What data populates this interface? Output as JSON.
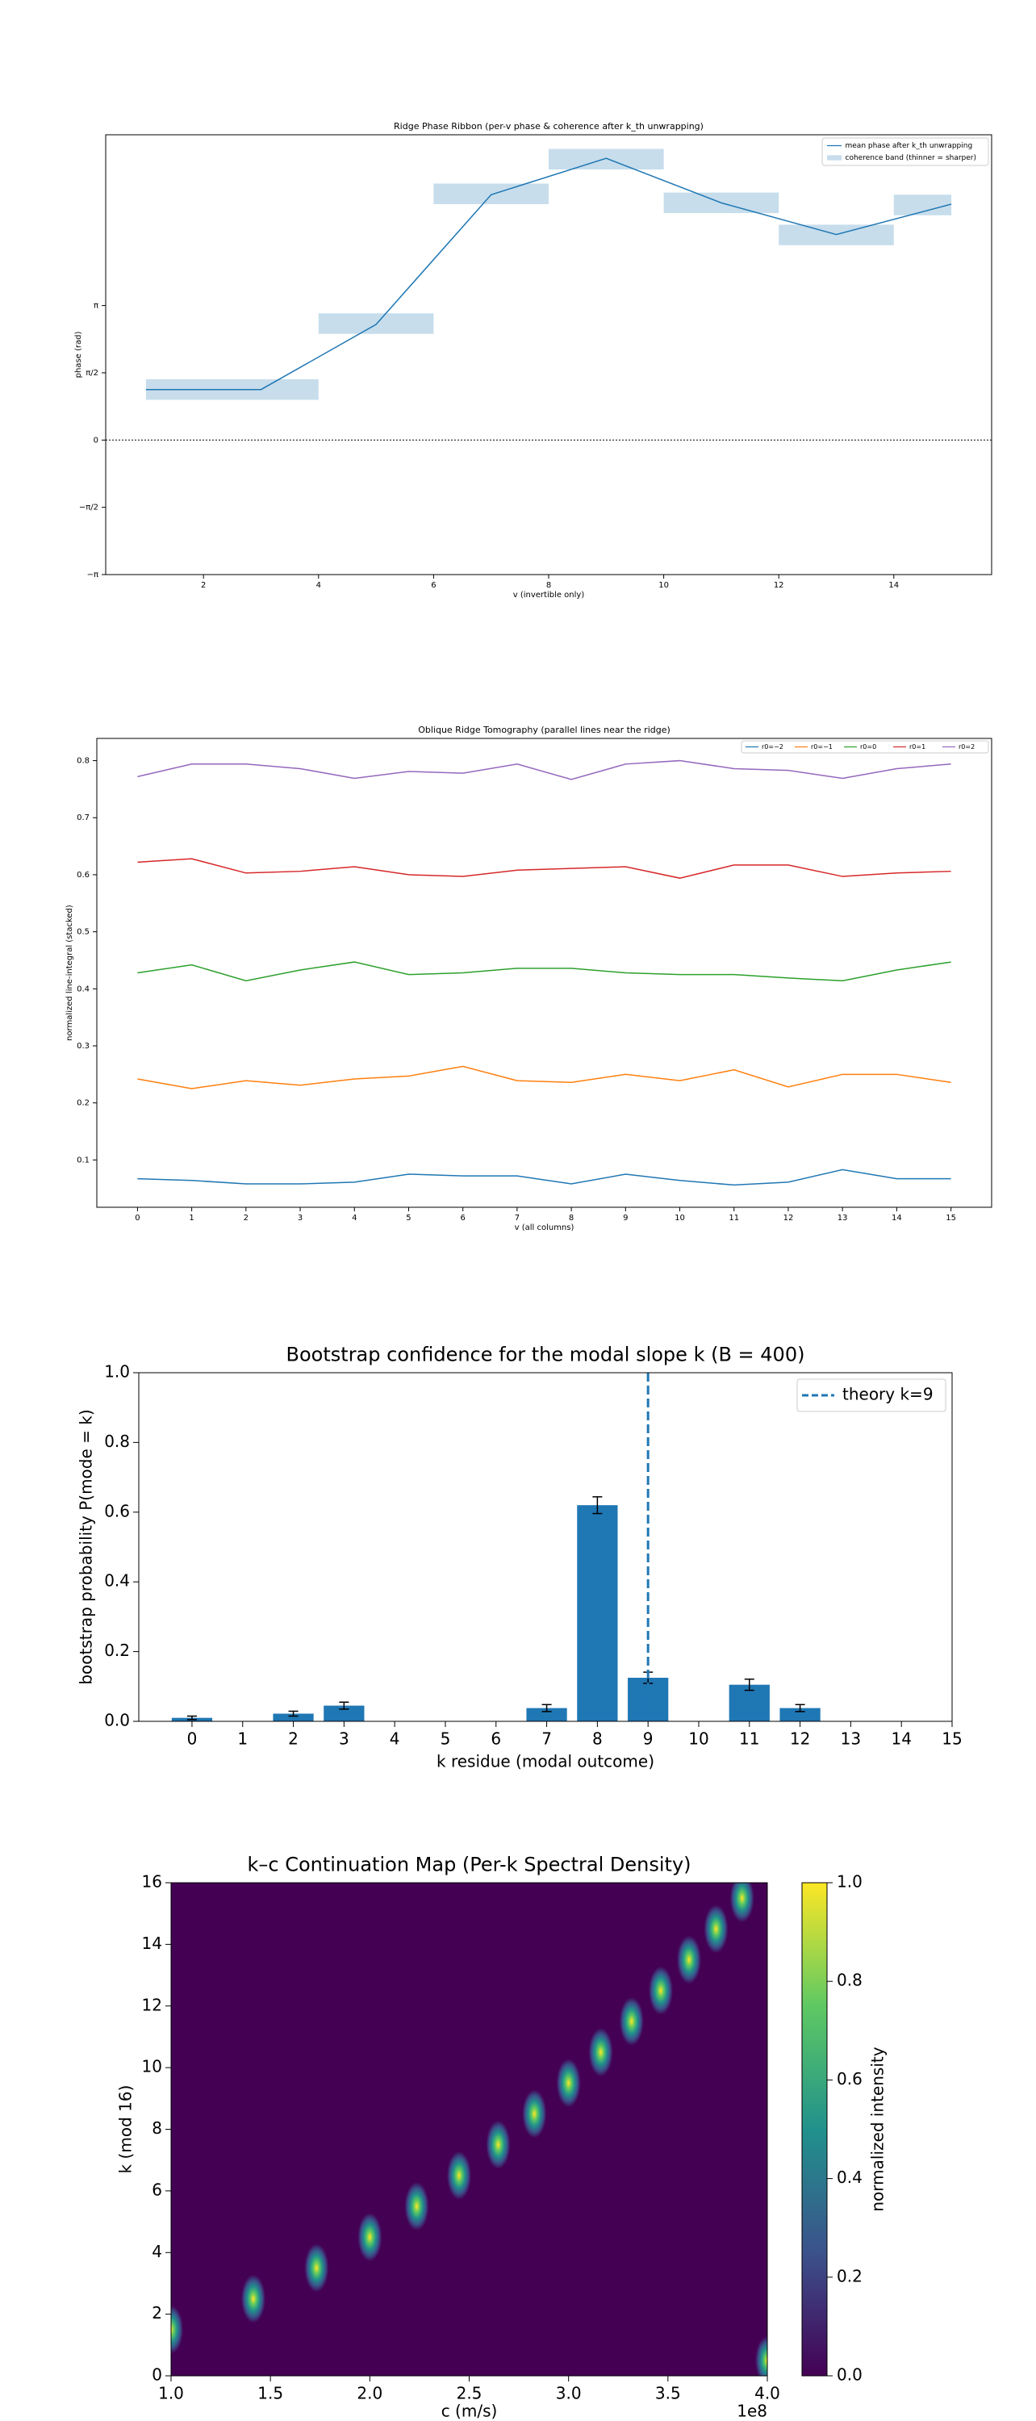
{
  "chart_data": [
    {
      "type": "line",
      "title": "Ridge Phase Ribbon (per-v phase & coherence after k_th unwrapping)",
      "xlabel": "v (invertible only)",
      "ylabel": "phase (rad)",
      "xlim": [
        0.3,
        15.7
      ],
      "ylim": [
        -3.1416,
        7.13
      ],
      "xticks": [
        2,
        4,
        6,
        8,
        10,
        12,
        14
      ],
      "yticks": [
        {
          "value": -3.1416,
          "label": "−π"
        },
        {
          "value": -1.5708,
          "label": "−π/2"
        },
        0,
        {
          "value": 1.5708,
          "label": "π/2"
        },
        {
          "value": 3.1416,
          "label": "π"
        }
      ],
      "hline": 0,
      "legend": "upper right",
      "series": [
        {
          "name": "mean phase after k_th unwrapping",
          "color": "#1f77b4",
          "x": [
            1,
            3,
            5,
            7,
            9,
            11,
            13,
            15
          ],
          "values": [
            1.18,
            1.18,
            2.7,
            5.73,
            6.58,
            5.54,
            4.8,
            5.51
          ]
        }
      ],
      "bands": {
        "name": "coherence band (thinner = sharper)",
        "color": "#1f77b4",
        "x0": [
          1,
          4,
          6,
          8,
          10,
          12,
          14
        ],
        "x1": [
          4,
          6,
          8,
          10,
          12,
          14,
          15
        ],
        "low": [
          0.94,
          2.48,
          5.51,
          6.32,
          5.3,
          4.55,
          5.25
        ],
        "high": [
          1.42,
          2.96,
          5.99,
          6.8,
          5.78,
          5.03,
          5.73
        ]
      }
    },
    {
      "type": "line",
      "title": "Oblique Ridge Tomography (parallel lines near the ridge)",
      "xlabel": "v (all columns)",
      "ylabel": "normalized line-integral (stacked)",
      "xlim": [
        -0.75,
        15.75
      ],
      "ylim": [
        0.017,
        0.839
      ],
      "xticks": [
        0,
        1,
        2,
        3,
        4,
        5,
        6,
        7,
        8,
        9,
        10,
        11,
        12,
        13,
        14,
        15
      ],
      "yticks": [
        0.1,
        0.2,
        0.3,
        0.4,
        0.5,
        0.6,
        0.7,
        0.8
      ],
      "legend": "upper right",
      "x": [
        0,
        1,
        2,
        3,
        4,
        5,
        6,
        7,
        8,
        9,
        10,
        11,
        12,
        13,
        14,
        15
      ],
      "series": [
        {
          "name": "r0=−2",
          "color": "#1f77b4",
          "values": [
            0.067,
            0.064,
            0.058,
            0.058,
            0.061,
            0.075,
            0.072,
            0.072,
            0.058,
            0.075,
            0.064,
            0.056,
            0.061,
            0.083,
            0.067,
            0.067
          ]
        },
        {
          "name": "r0=−1",
          "color": "#ff7f0e",
          "values": [
            0.242,
            0.225,
            0.239,
            0.231,
            0.242,
            0.247,
            0.264,
            0.239,
            0.236,
            0.25,
            0.239,
            0.258,
            0.228,
            0.25,
            0.25,
            0.236
          ]
        },
        {
          "name": "r0=0",
          "color": "#2ca02c",
          "values": [
            0.428,
            0.442,
            0.414,
            0.433,
            0.447,
            0.425,
            0.428,
            0.436,
            0.436,
            0.428,
            0.425,
            0.425,
            0.419,
            0.414,
            0.433,
            0.447
          ]
        },
        {
          "name": "r0=1",
          "color": "#d62728",
          "values": [
            0.622,
            0.628,
            0.603,
            0.606,
            0.614,
            0.6,
            0.597,
            0.608,
            0.611,
            0.614,
            0.594,
            0.617,
            0.617,
            0.597,
            0.603,
            0.606
          ]
        },
        {
          "name": "r0=2",
          "color": "#9467bd",
          "values": [
            0.772,
            0.794,
            0.794,
            0.786,
            0.769,
            0.781,
            0.778,
            0.794,
            0.767,
            0.794,
            0.8,
            0.786,
            0.783,
            0.769,
            0.786,
            0.794
          ]
        }
      ]
    },
    {
      "type": "bar",
      "title": "Bootstrap confidence for the modal slope k (B = 400)",
      "xlabel": "k residue (modal outcome)",
      "ylabel": "bootstrap probability  P(mode = k)",
      "xlim": [
        -1.05,
        15
      ],
      "ylim": [
        0,
        1.0
      ],
      "xticks": [
        0,
        1,
        2,
        3,
        4,
        5,
        6,
        7,
        8,
        9,
        10,
        11,
        12,
        13,
        14,
        15
      ],
      "yticks": [
        {
          "value": 0,
          "label": "0.0"
        },
        0.2,
        0.4,
        0.6,
        0.8,
        {
          "value": 1.0,
          "label": "1.0"
        }
      ],
      "x": [
        0,
        1,
        2,
        3,
        4,
        5,
        6,
        7,
        8,
        9,
        10,
        11,
        12,
        13,
        14,
        15
      ],
      "values": [
        0.01,
        0,
        0.022,
        0.045,
        0,
        0,
        0,
        0.038,
        0.62,
        0.125,
        0,
        0.105,
        0.038,
        0,
        0,
        0
      ],
      "errors": [
        0.005,
        0,
        0.007,
        0.01,
        0,
        0,
        0,
        0.01,
        0.024,
        0.016,
        0,
        0.016,
        0.01,
        0,
        0,
        0
      ],
      "color": "#1f77b4",
      "legend": "upper right",
      "vline": {
        "x": 9,
        "name": "theory k=9",
        "color": "#1f77b4"
      }
    },
    {
      "type": "heatmap",
      "title": "k–c Continuation Map (Per-k Spectral Density)",
      "xlabel": "c (m/s)",
      "ylabel": "k (mod 16)",
      "x_offset_label": "1e8",
      "xlim": [
        100000000,
        400000000
      ],
      "ylim": [
        0,
        16
      ],
      "xticks": [
        {
          "value": 100000000,
          "label": "1.0"
        },
        {
          "value": 150000000,
          "label": "1.5"
        },
        {
          "value": 200000000,
          "label": "2.0"
        },
        {
          "value": 250000000,
          "label": "2.5"
        },
        {
          "value": 300000000,
          "label": "3.0"
        },
        {
          "value": 350000000,
          "label": "3.5"
        },
        {
          "value": 400000000,
          "label": "4.0"
        }
      ],
      "yticks": [
        0,
        2,
        4,
        6,
        8,
        10,
        12,
        14,
        16
      ],
      "peaks": {
        "k": [
          0.5,
          1.5,
          2.5,
          3.5,
          4.5,
          5.5,
          6.5,
          7.5,
          8.5,
          9.5,
          10.5,
          11.5,
          12.5,
          13.5,
          14.5,
          15.5
        ],
        "c": [
          400000000,
          100000000,
          141400000,
          173200000,
          200000000,
          223600000,
          244900000,
          264600000,
          282800000,
          300000000,
          316200000,
          331700000,
          346400000,
          360600000,
          374200000,
          387300000
        ],
        "intensity": [
          1,
          1,
          1,
          1,
          1,
          1,
          1,
          1,
          1,
          1,
          1,
          1,
          1,
          1,
          1,
          1
        ]
      },
      "colorbar_label": "normalized intensity",
      "clim": [
        0,
        1
      ],
      "cticks": [
        {
          "value": 0,
          "label": "0.0"
        },
        0.2,
        0.4,
        0.6,
        0.8,
        {
          "value": 1,
          "label": "1.0"
        }
      ]
    }
  ]
}
